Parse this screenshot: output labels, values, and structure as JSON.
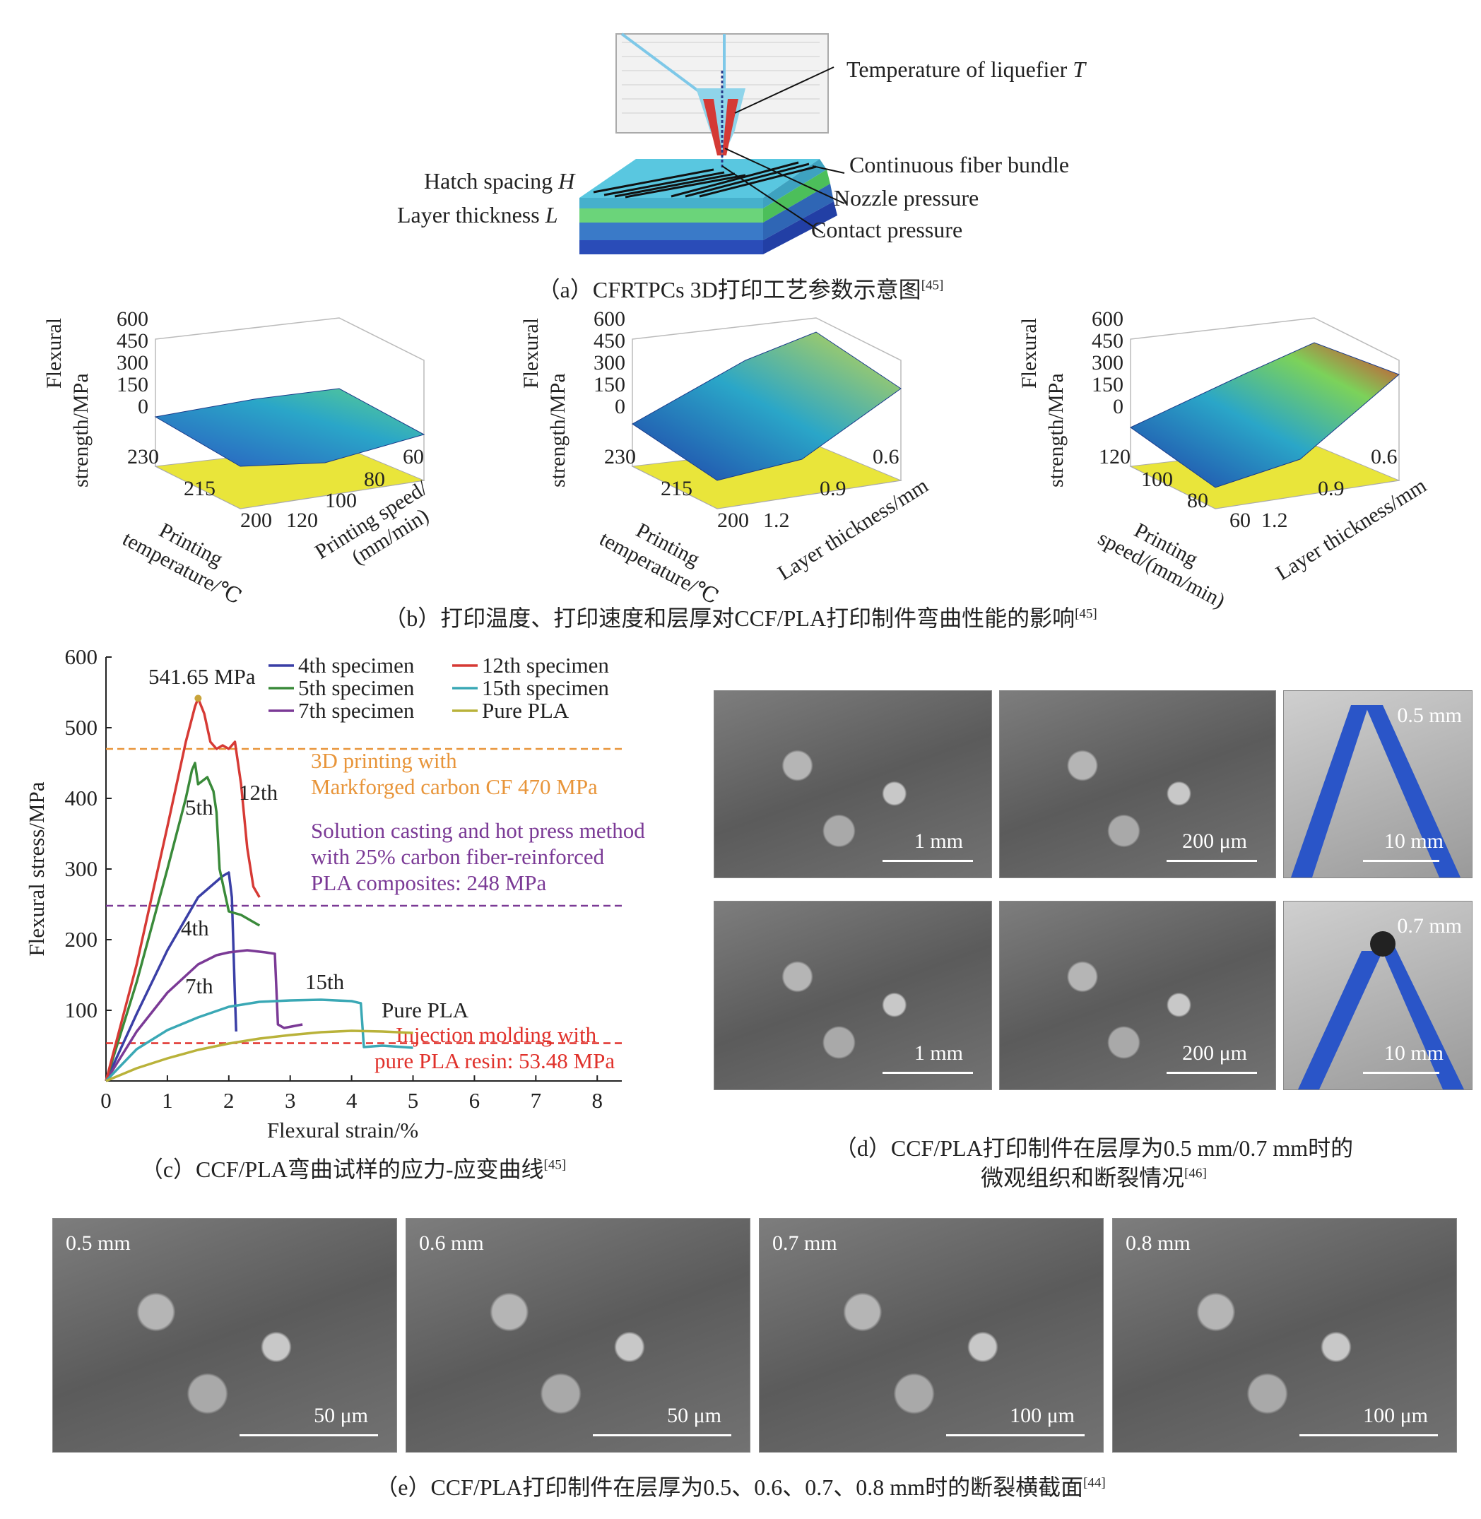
{
  "panel_a": {
    "labels": {
      "temperature": "Temperature of liquefier ",
      "temperature_var": "T",
      "fiber_bundle": "Continuous fiber bundle",
      "hatch": "Hatch spacing ",
      "hatch_var": "H",
      "layer": "Layer thickness ",
      "layer_var": "L",
      "nozzle": "Nozzle pressure",
      "contact": "Contact pressure"
    },
    "caption": "（a）CFRTPCs 3D打印工艺参数示意图",
    "caption_ref": "[45]"
  },
  "panel_b": {
    "caption": "（b）打印温度、打印速度和层厚对CCF/PLA打印制件弯曲性能的影响",
    "caption_ref": "[45]",
    "plots": [
      {
        "zlabel1": "Flexural",
        "zlabel2": "strength/MPa",
        "zticks": [
          "600",
          "450",
          "300",
          "150",
          "0"
        ],
        "xlabel1": "Printing",
        "xlabel2": "temperature/℃",
        "xticks": [
          "230",
          "215",
          "200"
        ],
        "ylabel1": "Printing speed/",
        "ylabel2": "(mm/min)",
        "yticks": [
          "120",
          "100",
          "80",
          "60"
        ]
      },
      {
        "zlabel1": "Flexural",
        "zlabel2": "strength/MPa",
        "zticks": [
          "600",
          "450",
          "300",
          "150",
          "0"
        ],
        "xlabel1": "Printing",
        "xlabel2": "temperature/℃",
        "xticks": [
          "230",
          "215",
          "200"
        ],
        "ylabel1": "Layer thickness/mm",
        "ylabel2": "",
        "yticks": [
          "1.2",
          "0.9",
          "0.6"
        ]
      },
      {
        "zlabel1": "Flexural",
        "zlabel2": "strength/MPa",
        "zticks": [
          "600",
          "450",
          "300",
          "150",
          "0"
        ],
        "xlabel1": "Printing",
        "xlabel2": "speed/(mm/min)",
        "xticks": [
          "120",
          "100",
          "80",
          "60"
        ],
        "ylabel1": "Layer thickness/mm",
        "ylabel2": "",
        "yticks": [
          "1.2",
          "0.9",
          "0.6"
        ]
      }
    ]
  },
  "chart_data": {
    "type": "line",
    "xlabel": "Flexural strain/%",
    "ylabel": "Flexural stress/MPa",
    "xlim": [
      0,
      8.4
    ],
    "ylim": [
      0,
      600
    ],
    "xticks": [
      0,
      1,
      2,
      3,
      4,
      5,
      6,
      7,
      8
    ],
    "yticks": [
      100,
      200,
      300,
      400,
      500,
      600
    ],
    "legend_position": "top",
    "series": [
      {
        "name": "4th specimen",
        "color": "#3a3fa6",
        "x": [
          0,
          0.5,
          1.0,
          1.5,
          1.9,
          2.0,
          2.05,
          2.1,
          2.12
        ],
        "y": [
          0,
          95,
          185,
          260,
          290,
          295,
          260,
          120,
          70
        ]
      },
      {
        "name": "5th specimen",
        "color": "#3a8a3a",
        "x": [
          0,
          0.5,
          1.0,
          1.3,
          1.4,
          1.45,
          1.5,
          1.65,
          1.75,
          1.8,
          1.85,
          2.0,
          2.2,
          2.4,
          2.5
        ],
        "y": [
          0,
          140,
          300,
          400,
          440,
          450,
          420,
          430,
          410,
          380,
          300,
          240,
          235,
          225,
          220
        ]
      },
      {
        "name": "7th specimen",
        "color": "#7b3a96",
        "x": [
          0,
          0.5,
          1.0,
          1.5,
          1.8,
          2.0,
          2.3,
          2.6,
          2.75,
          2.8,
          2.9,
          3.2
        ],
        "y": [
          0,
          70,
          125,
          165,
          178,
          182,
          185,
          182,
          180,
          80,
          75,
          80
        ]
      },
      {
        "name": "12th specimen",
        "color": "#d63a35",
        "x": [
          0,
          0.5,
          1.0,
          1.3,
          1.45,
          1.5,
          1.6,
          1.7,
          1.8,
          1.9,
          2.0,
          2.1,
          2.2,
          2.3,
          2.4,
          2.5
        ],
        "y": [
          0,
          165,
          360,
          480,
          530,
          541.65,
          520,
          480,
          470,
          475,
          470,
          480,
          420,
          330,
          275,
          260
        ]
      },
      {
        "name": "15th specimen",
        "color": "#3aa8b5",
        "x": [
          0,
          0.5,
          1.0,
          1.5,
          2.0,
          2.5,
          3.0,
          3.5,
          4.0,
          4.15,
          4.2,
          4.5,
          5.0
        ],
        "y": [
          0,
          45,
          72,
          90,
          105,
          112,
          114,
          115,
          113,
          110,
          48,
          50,
          47
        ]
      },
      {
        "name": "Pure PLA",
        "color": "#b9b23a",
        "x": [
          0,
          0.5,
          1.0,
          1.5,
          2.0,
          2.5,
          3.0,
          3.5,
          4.0,
          4.5,
          5.0
        ],
        "y": [
          0,
          18,
          32,
          44,
          53,
          60,
          65,
          69,
          71,
          70,
          68
        ]
      }
    ],
    "reference_lines": [
      {
        "y": 470,
        "color": "#e8953a",
        "text1": "3D printing with",
        "text2": "Markforged carbon CF 470 MPa"
      },
      {
        "y": 248,
        "color": "#7b3a96",
        "text1": "Solution casting and hot press method",
        "text2": "with 25% carbon fiber-reinforced",
        "text3": "PLA composites: 248 MPa"
      },
      {
        "y": 53.48,
        "color": "#e0312b",
        "text1": "Injection molding with",
        "text2": "pure PLA resin: 53.48 MPa"
      }
    ],
    "annotations": {
      "peak": "541.65 MPa",
      "a12": "12th",
      "a5": "5th",
      "a4": "4th",
      "a7": "7th",
      "a15": "15th",
      "apla": "Pure PLA"
    }
  },
  "panel_c": {
    "caption": "（c）CCF/PLA弯曲试样的应力-应变曲线",
    "caption_ref": "[45]"
  },
  "panel_d": {
    "caption1": "（d）CCF/PLA打印制件在层厚为0.5 mm/0.7 mm时的",
    "caption2": "微观组织和断裂情况",
    "caption_ref": "[46]",
    "images": [
      {
        "scale": "1 mm",
        "thickness": ""
      },
      {
        "scale": "200 μm",
        "thickness": ""
      },
      {
        "scale": "10 mm",
        "thickness": "0.5 mm"
      },
      {
        "scale": "1 mm",
        "thickness": ""
      },
      {
        "scale": "200 μm",
        "thickness": ""
      },
      {
        "scale": "10 mm",
        "thickness": "0.7 mm"
      }
    ]
  },
  "panel_e": {
    "caption": "（e）CCF/PLA打印制件在层厚为0.5、0.6、0.7、0.8 mm时的断裂横截面",
    "caption_ref": "[44]",
    "images": [
      {
        "thickness": "0.5 mm",
        "scale": "50 μm"
      },
      {
        "thickness": "0.6 mm",
        "scale": "50 μm"
      },
      {
        "thickness": "0.7 mm",
        "scale": "100 μm"
      },
      {
        "thickness": "0.8 mm",
        "scale": "100 μm"
      }
    ]
  }
}
